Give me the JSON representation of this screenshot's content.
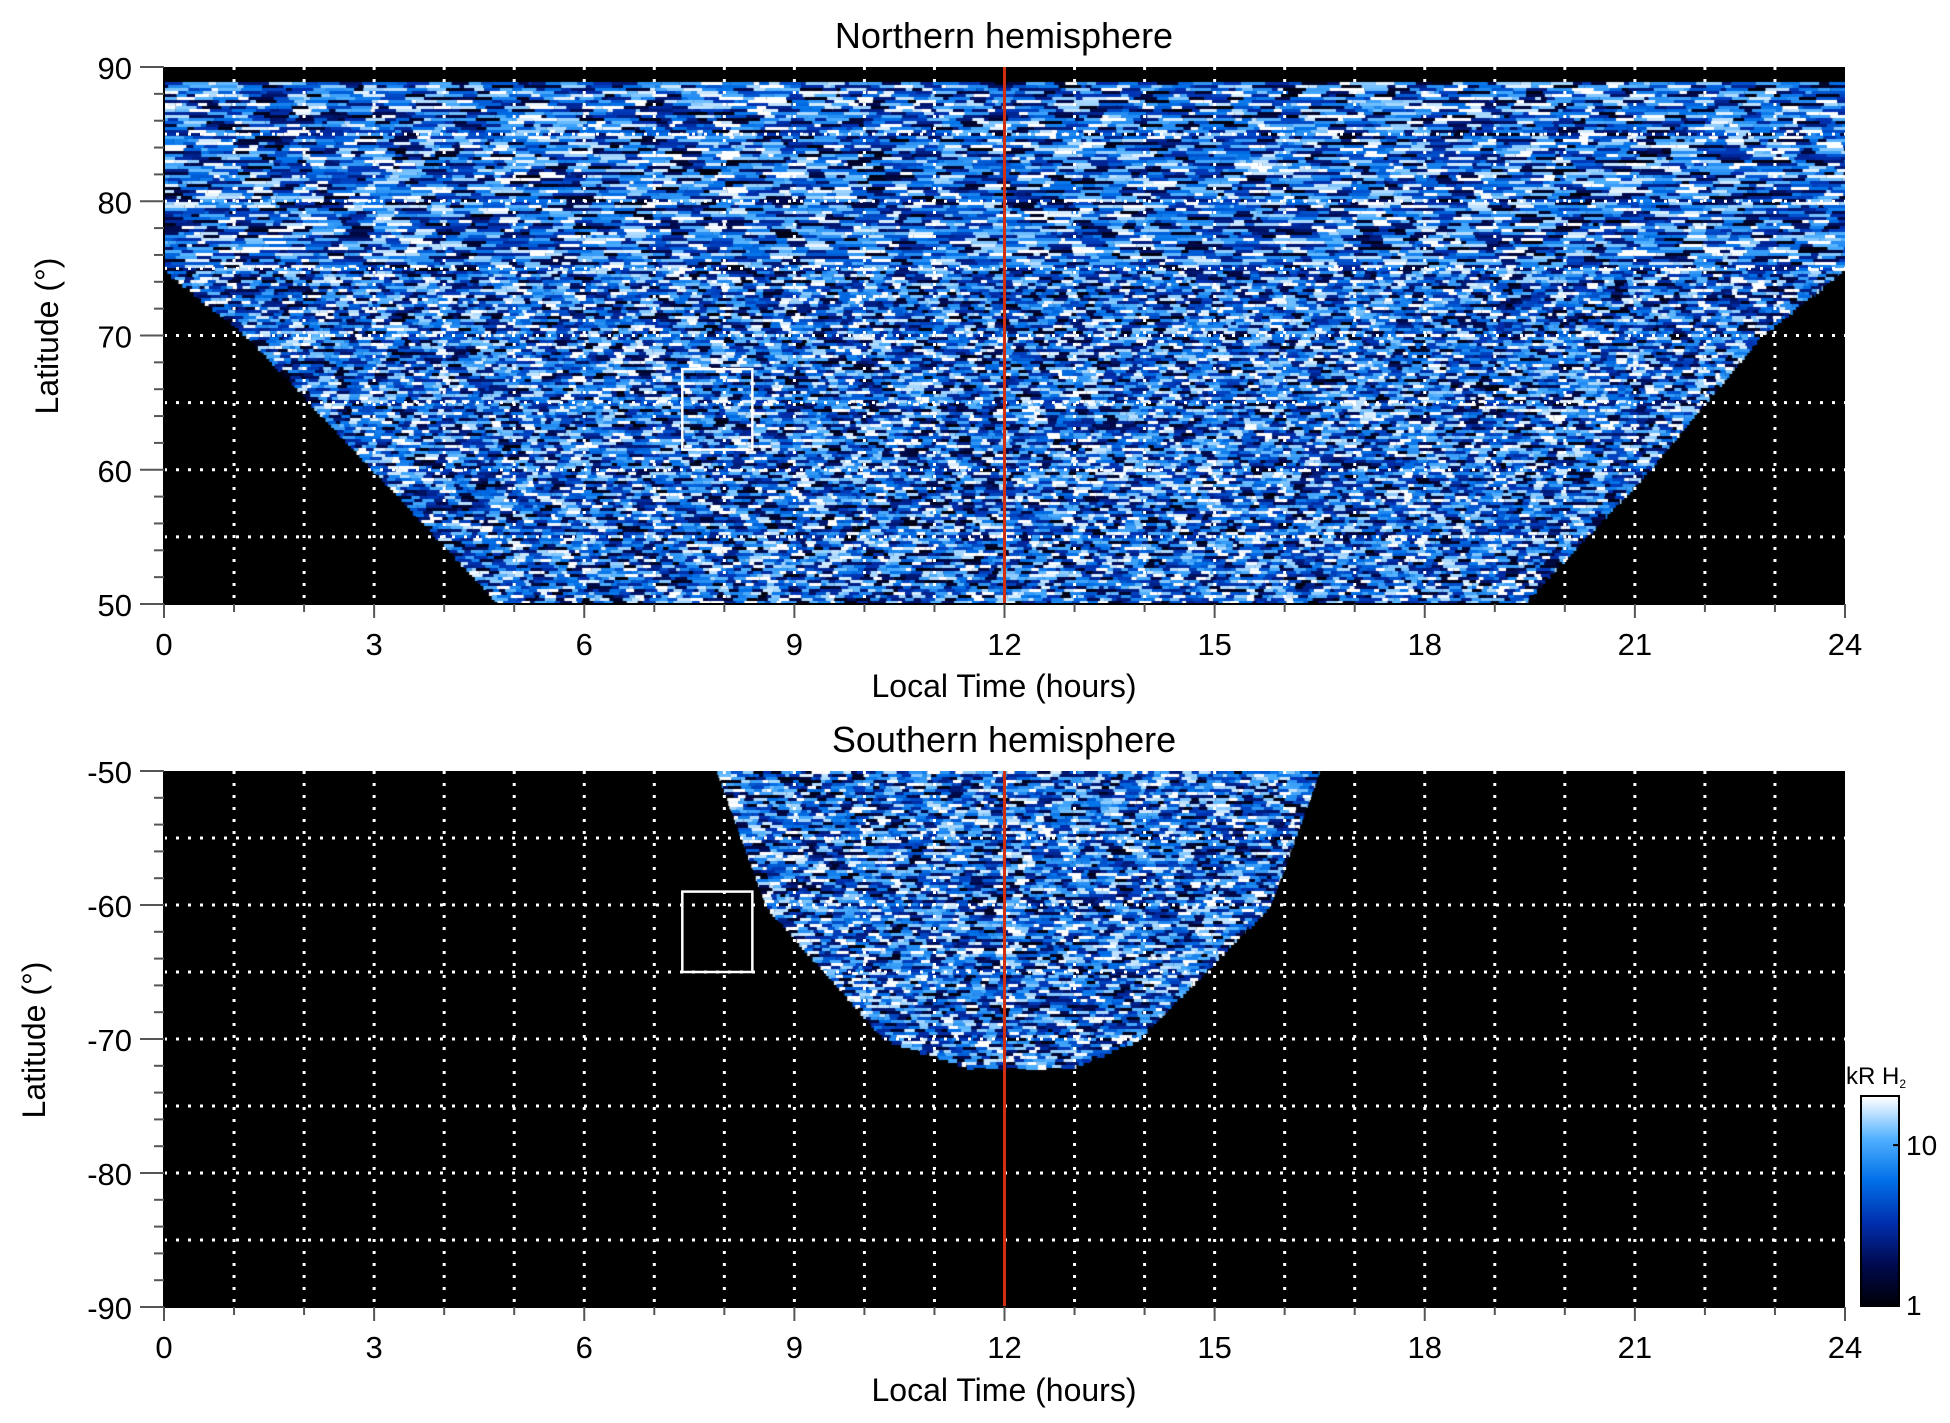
{
  "chart_data": [
    {
      "type": "heatmap",
      "title": "Northern hemisphere",
      "xlabel": "Local Time (hours)",
      "ylabel": "Latitude (°)",
      "xlim": [
        0,
        24
      ],
      "ylim": [
        50,
        90
      ],
      "xticks": [
        0,
        3,
        6,
        9,
        12,
        15,
        18,
        21,
        24
      ],
      "yticks": [
        50,
        60,
        70,
        80,
        90
      ],
      "grid": true,
      "grid_x_step": 1,
      "grid_y_step": 5,
      "noon_line_lt": 12,
      "box": {
        "lt": [
          7.4,
          8.4
        ],
        "lat": [
          61.5,
          67.5
        ]
      },
      "coverage_lat_edges": [
        [
          50,
          4.8,
          19.4
        ],
        [
          60,
          3.0,
          21.2
        ],
        [
          70,
          1.2,
          22.8
        ],
        [
          75,
          0,
          24
        ],
        [
          89,
          0,
          24
        ]
      ]
    },
    {
      "type": "heatmap",
      "title": "Southern hemisphere",
      "xlabel": "Local Time (hours)",
      "ylabel": "Latitude (°)",
      "xlim": [
        0,
        24
      ],
      "ylim": [
        -90,
        -50
      ],
      "xticks": [
        0,
        3,
        6,
        9,
        12,
        15,
        18,
        21,
        24
      ],
      "yticks": [
        -90,
        -80,
        -70,
        -60,
        -50
      ],
      "grid": true,
      "grid_x_step": 1,
      "grid_y_step": 5,
      "noon_line_lt": 12,
      "box": {
        "lt": [
          7.4,
          8.4
        ],
        "lat": [
          -65,
          -59
        ]
      },
      "coverage_lat_edges": [
        [
          -50,
          7.9,
          16.5
        ],
        [
          -60,
          8.6,
          15.8
        ],
        [
          -70,
          10.3,
          13.9
        ],
        [
          -72,
          11.5,
          13.0
        ]
      ]
    }
  ],
  "colorbar": {
    "label": "kR H",
    "label_sub": "2",
    "scale": "log",
    "ticks": [
      "10",
      "1"
    ],
    "range": [
      1,
      20
    ],
    "colors": [
      "#000008",
      "#000a50",
      "#0030b0",
      "#0070e8",
      "#50b0ff",
      "#ffffff"
    ]
  },
  "colors": {
    "noon_line": "#d03010",
    "box": "#ffffff",
    "grid": "#ffffff"
  }
}
